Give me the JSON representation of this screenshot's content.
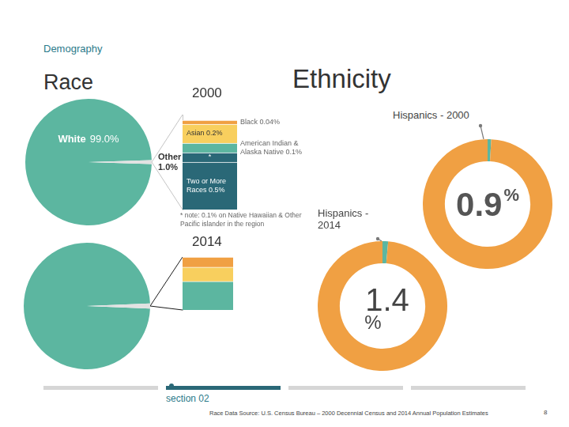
{
  "header": {
    "section": "Demography",
    "left_title": "Race",
    "right_title": "Ethnicity"
  },
  "chart_data": [
    {
      "type": "pie",
      "categories": [
        "White",
        "Other"
      ],
      "values": [
        99.0,
        1.0
      ],
      "value_labels": [
        "99.0%",
        "1.0%"
      ],
      "colors": [
        "#5cb6a0",
        "#e2e2e2"
      ],
      "data_labels": true
    },
    {
      "type": "bar",
      "stacked": true,
      "title": "2000",
      "categories": [
        null
      ],
      "ylim": [
        0,
        1.0
      ],
      "tick_labels": false,
      "grid": false,
      "data_labels": true,
      "series": [
        {
          "name": "Two or More Races",
          "color": "#2a6877",
          "values": [
            0.5
          ],
          "value_labels": [
            "0.5%"
          ]
        },
        {
          "name": "*",
          "color": "#2a6877",
          "values": [
            0.1
          ]
        },
        {
          "name": "American Indian & Alaska Native",
          "color": "#5cb6a0",
          "values": [
            0.1
          ],
          "value_labels": [
            "0.1%"
          ]
        },
        {
          "name": "Asian",
          "color": "#f8cf5e",
          "values": [
            0.2
          ],
          "value_labels": [
            "0.2%"
          ]
        },
        {
          "name": "Black",
          "color": "#f0a043",
          "values": [
            0.04
          ],
          "value_labels": [
            "0.04%"
          ]
        }
      ],
      "annotation": "* note: 0.1% on Native Hawaiian & Other Pacific islander in the region"
    },
    {
      "type": "pie",
      "values": [
        98.7,
        1.3
      ],
      "colors": [
        "#5cb6a0",
        "#e2e2e2"
      ]
    },
    {
      "type": "bar",
      "stacked": true,
      "title": "2014",
      "categories": [
        null
      ],
      "ylim": [
        0,
        1.3
      ],
      "tick_labels": false,
      "grid": false,
      "series": [
        {
          "color": "#5cb6a0",
          "values": [
            0.7
          ]
        },
        {
          "color": "#f8cf5e",
          "values": [
            0.35
          ]
        },
        {
          "color": "#f0a043",
          "values": [
            0.25
          ]
        }
      ]
    },
    {
      "type": "doughnut",
      "title": "Hispanics - 2000",
      "values": [
        0.9,
        99.1
      ],
      "value_labels": [
        "0.9%",
        null
      ],
      "colors": [
        "#5cb6a0",
        "#f0a043"
      ],
      "data_labels": true
    },
    {
      "type": "doughnut",
      "title": "Hispanics - 2014",
      "values": [
        1.4,
        98.6
      ],
      "value_labels": [
        "1.4%",
        null
      ],
      "colors": [
        "#5cb6a0",
        "#f0a043"
      ],
      "data_labels": true
    }
  ],
  "footer": {
    "section": "section 02",
    "source": "Race Data Source: U.S. Census Bureau – 2000 Decennial Census and 2014 Annual Population Estimates",
    "page": "8"
  }
}
